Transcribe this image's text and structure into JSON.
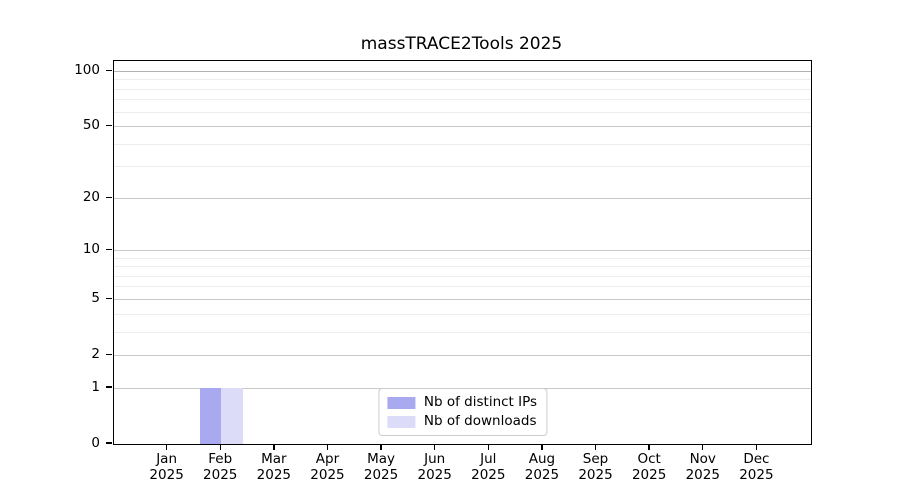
{
  "chart_data": {
    "type": "bar",
    "title": "massTRACE2Tools 2025",
    "months": [
      "Jan",
      "Feb",
      "Mar",
      "Apr",
      "May",
      "Jun",
      "Jul",
      "Aug",
      "Sep",
      "Oct",
      "Nov",
      "Dec"
    ],
    "year_label": "2025",
    "series": [
      {
        "name": "Nb of distinct IPs",
        "color": "#a9a9f0",
        "values": [
          0,
          1,
          0,
          0,
          0,
          0,
          0,
          0,
          0,
          0,
          0,
          0
        ]
      },
      {
        "name": "Nb of downloads",
        "color": "#dcdcf8",
        "values": [
          0,
          1,
          0,
          0,
          0,
          0,
          0,
          0,
          0,
          0,
          0,
          0
        ]
      }
    ],
    "yscale": "log1p",
    "ylim": [
      0,
      114
    ],
    "y_ticks_major": [
      0,
      1,
      2,
      5,
      10,
      20,
      50,
      100
    ],
    "y_ticks_minor": [
      3,
      4,
      6,
      7,
      8,
      9,
      30,
      40,
      60,
      70,
      80,
      90
    ],
    "grid": {
      "which": "both",
      "major_color": "#c9c9c9",
      "minor_color": "#ededed",
      "top_line_color": "#b3b3b3"
    },
    "legend_position": "lower center"
  }
}
